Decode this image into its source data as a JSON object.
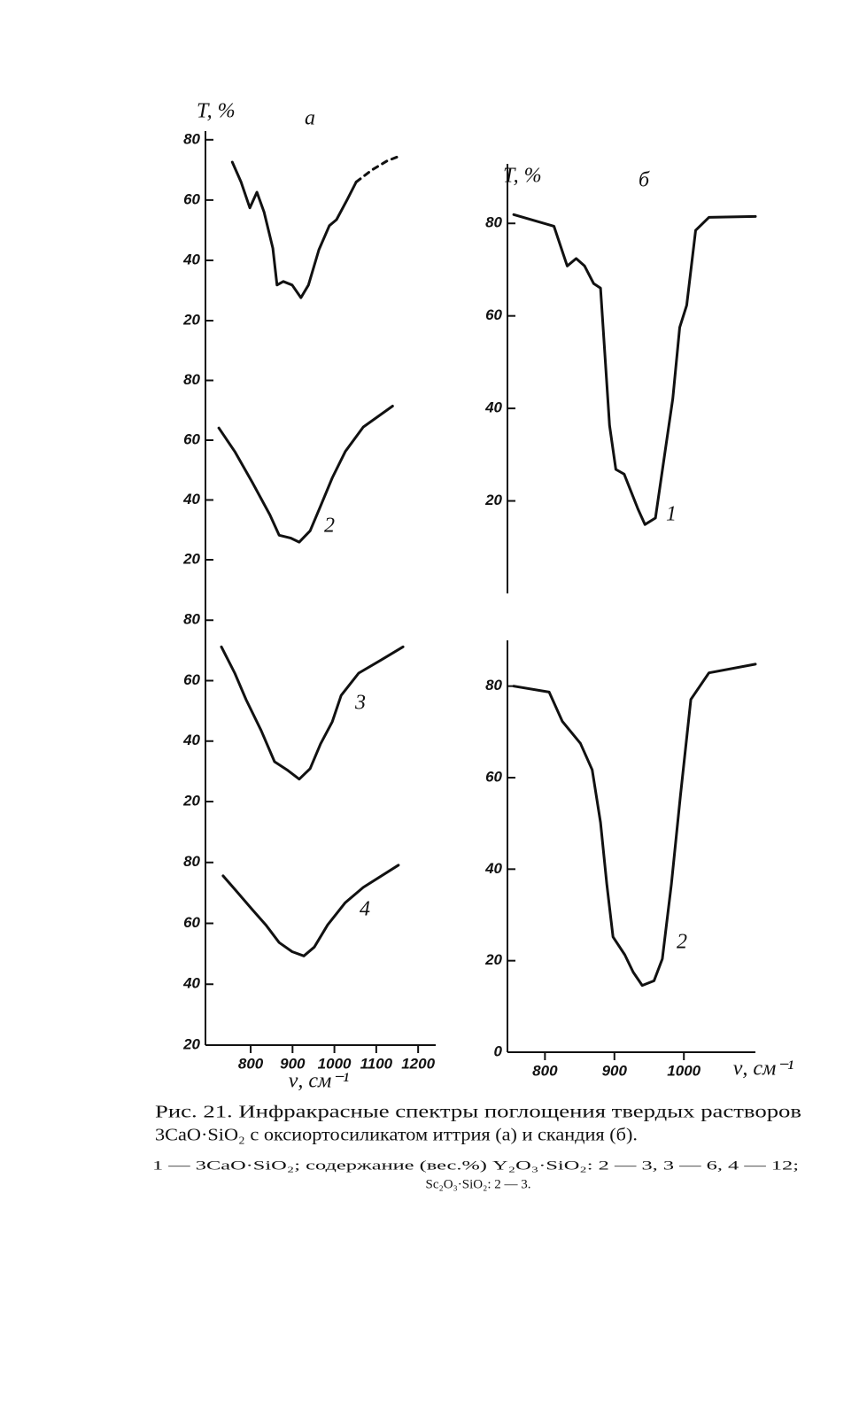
{
  "chart_data": [
    {
      "type": "line",
      "title": "а",
      "ylabel": "T, %",
      "xlim": [
        692,
        1242
      ],
      "ylim": [
        20,
        82
      ],
      "yticks": [
        20,
        40,
        60,
        80
      ],
      "series": [
        {
          "color": "#111111",
          "x": [
            756,
            777,
            798,
            815,
            832,
            853,
            863,
            878,
            899,
            920,
            938,
            963,
            988,
            1005,
            1031,
            1052
          ],
          "values": [
            72.6,
            66,
            57.4,
            62.6,
            56,
            44,
            31.8,
            33,
            31.8,
            27.6,
            31.8,
            43.5,
            51.5,
            53.5,
            60.3,
            66
          ]
        },
        {
          "color": "#111111",
          "dashed": true,
          "x": [
            1052,
            1090,
            1126,
            1158
          ],
          "values": [
            66,
            70,
            73,
            74.7
          ]
        }
      ]
    },
    {
      "type": "line",
      "xlim": [
        692,
        1242
      ],
      "ylim": [
        20,
        100
      ],
      "yticks": [
        20,
        40,
        60,
        80
      ],
      "series": [
        {
          "name": "2",
          "color": "#111111",
          "x": [
            724,
            762,
            804,
            846,
            868,
            895,
            916,
            942,
            967,
            995,
            1026,
            1069,
            1139
          ],
          "values": [
            64.1,
            56.2,
            45.9,
            35,
            28.2,
            27.3,
            25.9,
            29.7,
            38,
            47.4,
            56.2,
            64.4,
            71.4
          ]
        }
      ]
    },
    {
      "type": "line",
      "xlim": [
        692,
        1242
      ],
      "ylim": [
        20,
        100
      ],
      "yticks": [
        20,
        40,
        60,
        80
      ],
      "series": [
        {
          "name": "3",
          "color": "#111111",
          "x": [
            730,
            762,
            789,
            825,
            857,
            889,
            916,
            942,
            967,
            995,
            1016,
            1058,
            1111,
            1164
          ],
          "values": [
            71.2,
            62.5,
            53.7,
            43.5,
            33.2,
            30.3,
            27.4,
            30.9,
            39.1,
            46.4,
            55.1,
            62.5,
            66.8,
            71.2
          ]
        }
      ]
    },
    {
      "type": "line",
      "xlabel": "ν, см⁻¹",
      "xlim": [
        692,
        1242
      ],
      "xticks": [
        800,
        900,
        1000,
        1100,
        1200
      ],
      "ylim": [
        20,
        100
      ],
      "yticks": [
        20,
        40,
        60,
        80
      ],
      "series": [
        {
          "name": "4",
          "color": "#111111",
          "x": [
            734,
            762,
            804,
            836,
            868,
            899,
            927,
            952,
            984,
            1026,
            1069,
            1153
          ],
          "values": [
            75.6,
            71.2,
            64.5,
            59.5,
            53.7,
            50.7,
            49.3,
            52.2,
            59.5,
            66.8,
            71.8,
            79.1
          ]
        }
      ]
    },
    {
      "type": "line",
      "title": "б",
      "ylabel": "T, %",
      "xlim": [
        746,
        1103
      ],
      "ylim": [
        0,
        90
      ],
      "yticks": [
        20,
        40,
        60,
        80
      ],
      "series": [
        {
          "name": "1",
          "color": "#111111",
          "x": [
            755,
            813,
            832,
            845,
            857,
            870,
            880,
            893,
            902,
            914,
            924,
            934,
            944,
            959,
            971,
            984,
            994,
            1004,
            1017,
            1036,
            1103
          ],
          "values": [
            81.9,
            79.4,
            70.8,
            72.4,
            70.8,
            67,
            66,
            36.3,
            26.8,
            25.8,
            22,
            18.2,
            14.9,
            16.3,
            28.7,
            42.1,
            57.5,
            62.3,
            78.5,
            81.3,
            81.5
          ]
        }
      ]
    },
    {
      "type": "line",
      "xlabel": "ν, см⁻¹",
      "xlim": [
        746,
        1103
      ],
      "xticks": [
        800,
        900,
        1000
      ],
      "ylim": [
        0,
        90
      ],
      "yticks": [
        0,
        20,
        40,
        60,
        80
      ],
      "series": [
        {
          "name": "2",
          "color": "#111111",
          "x": [
            755,
            806,
            825,
            851,
            868,
            880,
            889,
            898,
            915,
            927,
            940,
            957,
            969,
            982,
            995,
            1010,
            1036,
            1103
          ],
          "values": [
            80,
            78.7,
            72.3,
            67.5,
            61.7,
            50.2,
            36.7,
            25.2,
            21.3,
            17.5,
            14.6,
            15.6,
            20.4,
            36.7,
            56,
            77.1,
            82.9,
            84.8
          ]
        }
      ]
    }
  ],
  "caption": {
    "lines": [
      "Рис. 21. Инфракрасные спектры поглощения твердых растворов",
      "3CaO·SiO₂ с оксиортосиликатом иттрия (а) и скандия (б)."
    ]
  },
  "notes": {
    "lines": [
      "1 — 3CaO·SiO₂; содержание (вес.%) Y₂O₃·SiO₂: 2 — 3, 3 — 6, 4 — 12;",
      "Sc₂O₃·SiO₂: 2 — 3."
    ]
  }
}
